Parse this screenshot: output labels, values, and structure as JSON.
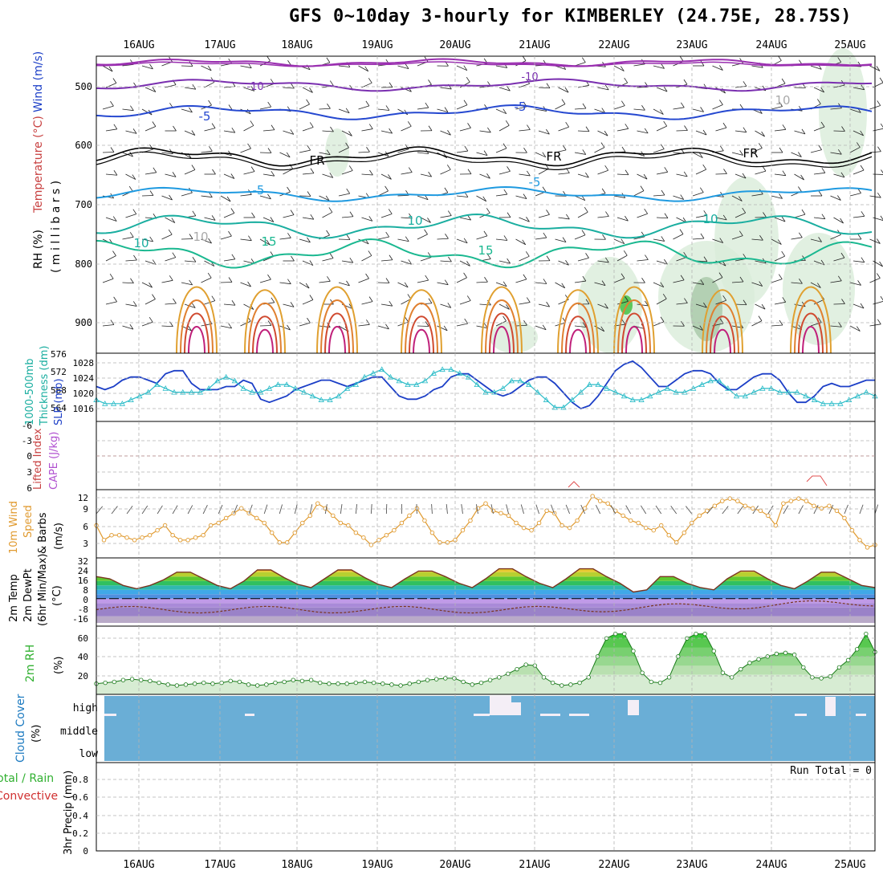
{
  "title": "GFS 0~10day 3-hourly for KIMBERLEY (24.75E, 28.75S)",
  "colors": {
    "grid": "#b4b4b4",
    "slp": "#1c3fc7",
    "thickness": "#2bbcc8",
    "lifted": "#e05050",
    "wind_line": "#e09a2f",
    "barb": "#555555",
    "rh_line": "#1a7a1a",
    "rh_fill": "#8fd88f",
    "cloud": "#6aaed6",
    "cloud_gap": "#f4eef6",
    "temp_line": "#7a3520",
    "dew_line": "#7a3520"
  },
  "dates": [
    "16AUG",
    "17AUG",
    "18AUG",
    "19AUG",
    "20AUG",
    "21AUG",
    "22AUG",
    "23AUG",
    "24AUG",
    "25AUG"
  ],
  "panels": {
    "upper": {
      "ylabel_wind": "Wind (m/s)",
      "ylabel_temp": "Temperature (°C)",
      "ylabel_rh": "RH (%)",
      "ylabel_unit": "( m i l l i b a r s )",
      "ticks": [
        "500",
        "600",
        "700",
        "800",
        "900"
      ],
      "contour_labels": [
        "-10",
        "-10",
        "-5",
        "-5",
        "FR",
        "FR",
        "FR",
        "-5",
        "-5",
        "10",
        "10",
        "10",
        "15",
        "15",
        "10",
        "10"
      ]
    },
    "pressure": {
      "ylabel_thick": "1000-500mb",
      "ylabel_thick2": "Thickness (dm)",
      "ylabel_slp": "SLP (mb)",
      "thick_ticks": [
        "576",
        "572",
        "568",
        "564"
      ],
      "slp_ticks": [
        "1028",
        "1024",
        "1020",
        "1016"
      ]
    },
    "stability": {
      "ylabel_li": "Lifted Index",
      "ylabel_cape": "CAPE (J/kg)",
      "ticks": [
        "-6",
        "-3",
        "0",
        "3",
        "6"
      ]
    },
    "wind10": {
      "ylabel1": "10m Wind",
      "ylabel2": "Speed",
      "ylabel3": "& Barbs",
      "ylabel_unit": "(m/s)",
      "ticks": [
        "12",
        "9",
        "6",
        "3"
      ]
    },
    "temp2m": {
      "ylabel1": "2m Temp",
      "ylabel2": "2m DewPt",
      "ylabel3": "(6hr Min/Max)",
      "ylabel_unit": "(°C)",
      "ticks": [
        "32",
        "24",
        "16",
        "8",
        "0",
        "-8",
        "-16"
      ]
    },
    "rh2m": {
      "ylabel": "2m RH",
      "ylabel_unit": "(%)",
      "ticks": [
        "60",
        "40",
        "20"
      ]
    },
    "cloud": {
      "ylabel": "Cloud Cover",
      "ylabel_unit": "(%)",
      "levels": [
        "high",
        "middle",
        "low"
      ]
    },
    "precip": {
      "ylabel1": "Total / Rain",
      "ylabel2": "Convective",
      "ylabel_unit": "3hr Precip (mm)",
      "ticks": [
        "0.8",
        "0.6",
        "0.4",
        "0.2",
        "0"
      ],
      "run_total": "Run Total = 0"
    }
  },
  "chart_data": [
    {
      "type": "line",
      "name": "Sea level pressure",
      "ylabel": "SLP (mb)",
      "ylim": [
        1012,
        1030
      ],
      "x_step_hours": 3,
      "values": [
        1021,
        1020,
        1021,
        1023,
        1024,
        1024,
        1023,
        1022,
        1025,
        1026,
        1026,
        1022,
        1020,
        1020,
        1020,
        1021,
        1021,
        1023,
        1022,
        1017,
        1016,
        1017,
        1018,
        1020,
        1021,
        1022,
        1023,
        1023,
        1022,
        1021,
        1022,
        1023,
        1024,
        1024,
        1021,
        1018,
        1017,
        1017,
        1018,
        1020,
        1021,
        1024,
        1025,
        1025,
        1023,
        1021,
        1019,
        1018,
        1019,
        1021,
        1023,
        1024,
        1024,
        1022,
        1019,
        1016,
        1014,
        1015,
        1018,
        1022,
        1026,
        1028,
        1029,
        1027,
        1024,
        1021,
        1021,
        1023,
        1025,
        1026,
        1026,
        1025,
        1022,
        1020,
        1020,
        1022,
        1024,
        1025,
        1025,
        1023,
        1019,
        1016,
        1016,
        1018,
        1021,
        1022,
        1021,
        1021,
        1022,
        1023,
        1023
      ]
    },
    {
      "type": "line",
      "name": "1000-500mb thickness",
      "ylabel": "Thickness (dm)",
      "ylim": [
        562,
        577
      ],
      "values": [
        566,
        565,
        565,
        565,
        566,
        567,
        568,
        570,
        569,
        568,
        568,
        568,
        568,
        569,
        571,
        572,
        571,
        569,
        568,
        568,
        569,
        570,
        570,
        569,
        568,
        567,
        566,
        566,
        567,
        569,
        570,
        572,
        573,
        574,
        572,
        571,
        570,
        570,
        571,
        573,
        574,
        574,
        573,
        572,
        570,
        568,
        568,
        569,
        571,
        571,
        570,
        568,
        566,
        564,
        564,
        566,
        568,
        570,
        570,
        569,
        568,
        567,
        566,
        566,
        567,
        568,
        569,
        568,
        568,
        569,
        570,
        571,
        571,
        569,
        567,
        567,
        568,
        569,
        569,
        568,
        568,
        568,
        567,
        566,
        565,
        565,
        565,
        566,
        567,
        568,
        567
      ]
    },
    {
      "type": "line",
      "name": "10m wind speed",
      "ylabel": "Speed (m/s)",
      "ylim": [
        0,
        13
      ],
      "values": [
        6,
        3,
        4,
        4,
        3.5,
        3,
        3.5,
        4,
        5,
        6,
        4,
        3,
        3,
        3.5,
        4,
        6,
        6.5,
        7.5,
        8.5,
        9.5,
        8.5,
        7.5,
        6.5,
        4.5,
        2.5,
        2.5,
        4.5,
        6.5,
        8,
        10.5,
        9.5,
        8,
        6.5,
        6,
        4.5,
        3.5,
        2,
        3,
        4,
        5,
        6.5,
        8,
        9.5,
        7,
        4.5,
        2.5,
        2.5,
        3,
        5,
        7,
        9.5,
        10.5,
        9,
        8.5,
        8,
        6.5,
        5.5,
        5,
        6.5,
        9,
        8.5,
        6,
        5.5,
        7,
        9.5,
        12,
        11,
        10.5,
        9,
        8,
        7,
        6.5,
        5.5,
        5,
        6,
        4,
        2.5,
        4.5,
        6.5,
        8,
        9,
        10,
        11,
        11.5,
        11,
        10,
        9.5,
        9,
        8,
        6,
        10.5,
        11,
        11.5,
        11,
        10,
        9.5,
        10,
        9,
        7.5,
        5,
        3,
        1.5,
        2
      ]
    },
    {
      "type": "area",
      "name": "2m RH",
      "ylabel": "(%)",
      "ylim": [
        0,
        70
      ],
      "values": [
        10,
        11,
        12,
        14,
        15,
        14,
        13,
        11,
        9,
        8,
        9,
        10,
        11,
        10,
        11,
        13,
        12,
        9,
        8,
        9,
        11,
        12,
        14,
        13,
        14,
        11,
        10,
        10,
        10,
        11,
        12,
        11,
        10,
        9,
        8,
        10,
        12,
        14,
        15,
        16,
        16,
        12,
        9,
        11,
        14,
        17,
        21,
        26,
        31,
        30,
        17,
        11,
        8,
        9,
        11,
        17,
        40,
        60,
        65,
        65,
        46,
        22,
        12,
        11,
        17,
        40,
        60,
        65,
        65,
        46,
        22,
        17,
        26,
        33,
        37,
        40,
        43,
        44,
        42,
        28,
        17,
        16,
        18,
        28,
        36,
        48,
        65,
        45
      ]
    },
    {
      "type": "line",
      "name": "2m temperature",
      "ylabel": "(°C)",
      "ylim": [
        -22,
        34
      ],
      "values": [
        20,
        18,
        12,
        9,
        12,
        17,
        24,
        24,
        18,
        12,
        9,
        16,
        26,
        26,
        19,
        13,
        10,
        18,
        26,
        26,
        19,
        13,
        10,
        18,
        25,
        25,
        20,
        14,
        10,
        18,
        27,
        27,
        20,
        14,
        10,
        18,
        27,
        27,
        20,
        14,
        6,
        8,
        20,
        20,
        14,
        10,
        8,
        18,
        25,
        25,
        18,
        12,
        9,
        16,
        24,
        24,
        18,
        12,
        10
      ]
    }
  ]
}
